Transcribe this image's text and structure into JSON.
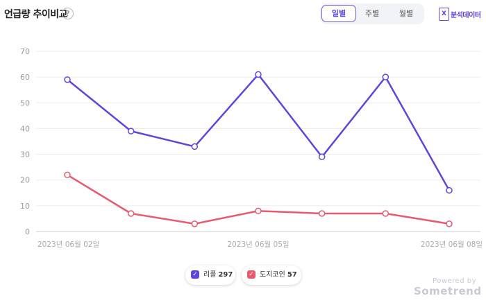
{
  "header": {
    "title": "언급량 추이비교",
    "help_icon": "?",
    "period_tabs": [
      {
        "label": "일별",
        "active": true
      },
      {
        "label": "주별",
        "active": false
      },
      {
        "label": "월별",
        "active": false
      }
    ],
    "analysis_button": {
      "icon": "X",
      "label": "분석데이터"
    }
  },
  "legend": {
    "items": [
      {
        "label": "리플",
        "count": "297",
        "color": "#5b47df"
      },
      {
        "label": "도지코인",
        "count": "57",
        "color": "#e85a6f"
      }
    ]
  },
  "footer": {
    "powered_by": "Powered by",
    "brand": "Sometrend"
  },
  "chart_data": {
    "type": "line",
    "x": [
      "2023년 06월 02일",
      "2023년 06월 03일",
      "2023년 06월 04일",
      "2023년 06월 05일",
      "2023년 06월 06일",
      "2023년 06월 07일",
      "2023년 06월 08일"
    ],
    "x_tick_labels": [
      "2023년 06월 02일",
      "",
      "",
      "2023년 06월 05일",
      "",
      "",
      "2023년 06월 08일"
    ],
    "ylim": [
      0,
      70
    ],
    "y_ticks": [
      0,
      10,
      20,
      30,
      40,
      50,
      60,
      70
    ],
    "grid": true,
    "series": [
      {
        "name": "리플",
        "color": "#5b47df",
        "values": [
          59,
          39,
          33,
          61,
          29,
          60,
          16
        ]
      },
      {
        "name": "도지코인",
        "color": "#e85a6f",
        "values": [
          22,
          7,
          3,
          8,
          7,
          7,
          3
        ]
      }
    ]
  }
}
